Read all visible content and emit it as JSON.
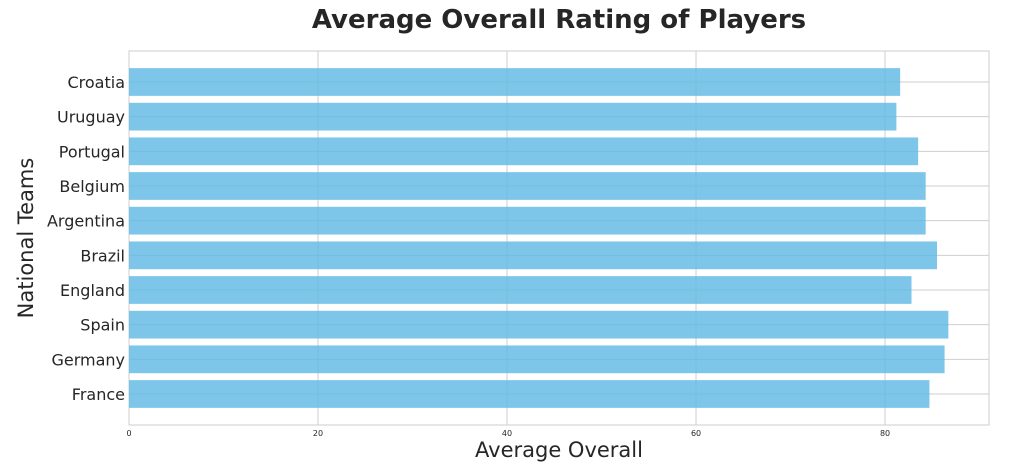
{
  "chart_data": {
    "type": "bar",
    "orientation": "horizontal",
    "title": "Average Overall Rating of Players",
    "xlabel": "Average Overall",
    "ylabel": "National Teams",
    "categories": [
      "Croatia",
      "Uruguay",
      "Portugal",
      "Belgium",
      "Argentina",
      "Brazil",
      "England",
      "Spain",
      "Germany",
      "France"
    ],
    "values": [
      81.6,
      81.2,
      83.5,
      84.3,
      84.3,
      85.5,
      82.8,
      86.7,
      86.3,
      84.7
    ],
    "xlim": [
      0,
      91
    ],
    "xticks": [
      "0",
      "20",
      "40",
      "60",
      "80"
    ],
    "bar_color": "#5DB8E3",
    "grid": true
  }
}
